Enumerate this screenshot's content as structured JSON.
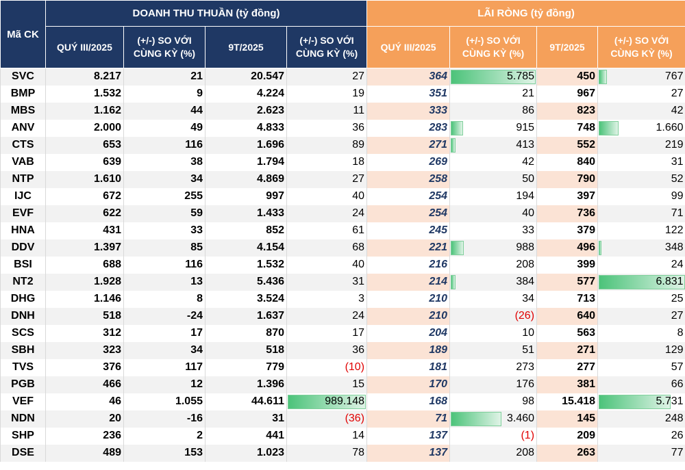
{
  "header": {
    "code": "Mã CK",
    "revenue_group": "DOANH THU THUẦN (tỷ đồng)",
    "profit_group": "LÃI RÒNG (tỷ đồng)",
    "q3": "QUÝ III/2025",
    "change_line1": "(+/-) SO VỚI",
    "change_line2": "CÙNG KỲ (%)",
    "ytd": "9T/2025"
  },
  "colors": {
    "navy": "#1f3864",
    "orange": "#f5a05a",
    "bar_green": "#4cc37a",
    "negative_red": "#e00000"
  },
  "rows": [
    {
      "code": "SVC",
      "rev_q": "8.217",
      "rev_q_chg": "21",
      "rev_9t": "20.547",
      "rev_9t_chg": "27",
      "np_q": "364",
      "np_q_chg": "5.785",
      "np_9t": "450",
      "np_9t_chg": "767"
    },
    {
      "code": "BMP",
      "rev_q": "1.532",
      "rev_q_chg": "9",
      "rev_9t": "4.224",
      "rev_9t_chg": "19",
      "np_q": "351",
      "np_q_chg": "21",
      "np_9t": "967",
      "np_9t_chg": "27"
    },
    {
      "code": "MBS",
      "rev_q": "1.162",
      "rev_q_chg": "44",
      "rev_9t": "2.623",
      "rev_9t_chg": "11",
      "np_q": "333",
      "np_q_chg": "86",
      "np_9t": "823",
      "np_9t_chg": "42"
    },
    {
      "code": "ANV",
      "rev_q": "2.000",
      "rev_q_chg": "49",
      "rev_9t": "4.833",
      "rev_9t_chg": "36",
      "np_q": "283",
      "np_q_chg": "915",
      "np_9t": "748",
      "np_9t_chg": "1.660"
    },
    {
      "code": "CTS",
      "rev_q": "653",
      "rev_q_chg": "116",
      "rev_9t": "1.696",
      "rev_9t_chg": "89",
      "np_q": "271",
      "np_q_chg": "413",
      "np_9t": "552",
      "np_9t_chg": "219"
    },
    {
      "code": "VAB",
      "rev_q": "639",
      "rev_q_chg": "38",
      "rev_9t": "1.794",
      "rev_9t_chg": "18",
      "np_q": "269",
      "np_q_chg": "42",
      "np_9t": "840",
      "np_9t_chg": "31"
    },
    {
      "code": "NTP",
      "rev_q": "1.610",
      "rev_q_chg": "34",
      "rev_9t": "4.869",
      "rev_9t_chg": "27",
      "np_q": "258",
      "np_q_chg": "50",
      "np_9t": "790",
      "np_9t_chg": "52"
    },
    {
      "code": "IJC",
      "rev_q": "672",
      "rev_q_chg": "255",
      "rev_9t": "997",
      "rev_9t_chg": "40",
      "np_q": "254",
      "np_q_chg": "194",
      "np_9t": "397",
      "np_9t_chg": "99"
    },
    {
      "code": "EVF",
      "rev_q": "622",
      "rev_q_chg": "59",
      "rev_9t": "1.433",
      "rev_9t_chg": "24",
      "np_q": "254",
      "np_q_chg": "40",
      "np_9t": "736",
      "np_9t_chg": "71"
    },
    {
      "code": "HNA",
      "rev_q": "431",
      "rev_q_chg": "33",
      "rev_9t": "852",
      "rev_9t_chg": "61",
      "np_q": "245",
      "np_q_chg": "33",
      "np_9t": "379",
      "np_9t_chg": "122"
    },
    {
      "code": "DDV",
      "rev_q": "1.397",
      "rev_q_chg": "85",
      "rev_9t": "4.154",
      "rev_9t_chg": "68",
      "np_q": "221",
      "np_q_chg": "988",
      "np_9t": "496",
      "np_9t_chg": "348"
    },
    {
      "code": "BSI",
      "rev_q": "688",
      "rev_q_chg": "116",
      "rev_9t": "1.532",
      "rev_9t_chg": "40",
      "np_q": "216",
      "np_q_chg": "208",
      "np_9t": "399",
      "np_9t_chg": "24"
    },
    {
      "code": "NT2",
      "rev_q": "1.928",
      "rev_q_chg": "13",
      "rev_9t": "5.436",
      "rev_9t_chg": "31",
      "np_q": "214",
      "np_q_chg": "384",
      "np_9t": "577",
      "np_9t_chg": "6.831"
    },
    {
      "code": "DHG",
      "rev_q": "1.146",
      "rev_q_chg": "8",
      "rev_9t": "3.524",
      "rev_9t_chg": "3",
      "np_q": "210",
      "np_q_chg": "34",
      "np_9t": "713",
      "np_9t_chg": "25"
    },
    {
      "code": "DNH",
      "rev_q": "518",
      "rev_q_chg": "-24",
      "rev_9t": "1.637",
      "rev_9t_chg": "24",
      "np_q": "210",
      "np_q_chg": "(26)",
      "np_9t": "640",
      "np_9t_chg": "27"
    },
    {
      "code": "SCS",
      "rev_q": "312",
      "rev_q_chg": "17",
      "rev_9t": "870",
      "rev_9t_chg": "17",
      "np_q": "204",
      "np_q_chg": "10",
      "np_9t": "563",
      "np_9t_chg": "8"
    },
    {
      "code": "SBH",
      "rev_q": "323",
      "rev_q_chg": "34",
      "rev_9t": "518",
      "rev_9t_chg": "36",
      "np_q": "189",
      "np_q_chg": "51",
      "np_9t": "271",
      "np_9t_chg": "129"
    },
    {
      "code": "TVS",
      "rev_q": "376",
      "rev_q_chg": "117",
      "rev_9t": "779",
      "rev_9t_chg": "(10)",
      "np_q": "181",
      "np_q_chg": "273",
      "np_9t": "277",
      "np_9t_chg": "57"
    },
    {
      "code": "PGB",
      "rev_q": "466",
      "rev_q_chg": "12",
      "rev_9t": "1.396",
      "rev_9t_chg": "15",
      "np_q": "170",
      "np_q_chg": "176",
      "np_9t": "381",
      "np_9t_chg": "66"
    },
    {
      "code": "VEF",
      "rev_q": "46",
      "rev_q_chg": "1.055",
      "rev_9t": "44.611",
      "rev_9t_chg": "989.148",
      "np_q": "168",
      "np_q_chg": "98",
      "np_9t": "15.418",
      "np_9t_chg": "5.731"
    },
    {
      "code": "NDN",
      "rev_q": "20",
      "rev_q_chg": "-16",
      "rev_9t": "31",
      "rev_9t_chg": "(36)",
      "np_q": "71",
      "np_q_chg": "3.460",
      "np_9t": "145",
      "np_9t_chg": "248"
    },
    {
      "code": "SHP",
      "rev_q": "236",
      "rev_q_chg": "2",
      "rev_9t": "441",
      "rev_9t_chg": "14",
      "np_q": "137",
      "np_q_chg": "(1)",
      "np_9t": "209",
      "np_9t_chg": "26"
    },
    {
      "code": "DSE",
      "rev_q": "489",
      "rev_q_chg": "153",
      "rev_9t": "1.023",
      "rev_9t_chg": "78",
      "np_q": "137",
      "np_q_chg": "208",
      "np_9t": "263",
      "np_9t_chg": "77"
    }
  ],
  "data_bars": {
    "rev_9t_chg": {
      "VEF": 1.0
    },
    "np_q_chg": {
      "SVC": 1.0,
      "ANV": 0.16,
      "CTS": 0.07,
      "DDV": 0.17,
      "NT2": 0.07,
      "NDN": 0.6
    },
    "np_9t_chg": {
      "SVC": 0.11,
      "ANV": 0.24,
      "DDV": 0.05,
      "NT2": 1.0,
      "VEF": 0.84
    }
  }
}
